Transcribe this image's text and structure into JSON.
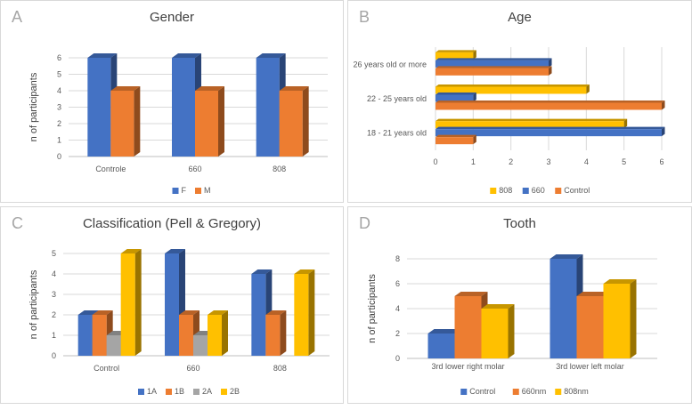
{
  "colors": {
    "blue": "#4472C4",
    "orange": "#ED7D31",
    "gray": "#A5A5A5",
    "yellow": "#FFC000"
  },
  "chart_data": [
    {
      "id": "gender",
      "letter": "A",
      "type": "bar",
      "title": "Gender",
      "xlabel": "",
      "ylabel": "n of participants",
      "ylim": [
        0,
        6
      ],
      "yticks": [
        0,
        1,
        2,
        3,
        4,
        5,
        6
      ],
      "categories": [
        "Controle",
        "660",
        "808"
      ],
      "series": [
        {
          "name": "F",
          "color": "#4472C4",
          "values": [
            6,
            6,
            6
          ]
        },
        {
          "name": "M",
          "color": "#ED7D31",
          "values": [
            4,
            4,
            4
          ]
        }
      ],
      "legend": "bottom",
      "grid": true
    },
    {
      "id": "age",
      "letter": "B",
      "type": "bar",
      "orientation": "horizontal",
      "title": "Age",
      "xlabel": "",
      "ylabel": "",
      "xlim": [
        0,
        6
      ],
      "xticks": [
        0,
        1,
        2,
        3,
        4,
        5,
        6
      ],
      "categories": [
        "18 - 21 years old",
        "22 - 25 years old",
        "26 years old or more"
      ],
      "series": [
        {
          "name": "808",
          "color": "#FFC000",
          "values": [
            5,
            4,
            1
          ]
        },
        {
          "name": "660",
          "color": "#4472C4",
          "values": [
            6,
            1,
            3
          ]
        },
        {
          "name": "Control",
          "color": "#ED7D31",
          "values": [
            1,
            6,
            3
          ]
        }
      ],
      "legend": "bottom",
      "grid": true
    },
    {
      "id": "classification",
      "letter": "C",
      "type": "bar",
      "title": "Classification (Pell & Gregory)",
      "xlabel": "",
      "ylabel": "n of participants",
      "ylim": [
        0,
        5
      ],
      "yticks": [
        0,
        1,
        2,
        3,
        4,
        5
      ],
      "categories": [
        "Control",
        "660",
        "808"
      ],
      "series": [
        {
          "name": "1A",
          "color": "#4472C4",
          "values": [
            2,
            5,
            4
          ]
        },
        {
          "name": "1B",
          "color": "#ED7D31",
          "values": [
            2,
            2,
            2
          ]
        },
        {
          "name": "2A",
          "color": "#A5A5A5",
          "values": [
            1,
            1,
            0
          ]
        },
        {
          "name": "2B",
          "color": "#FFC000",
          "values": [
            5,
            2,
            4
          ]
        }
      ],
      "legend": "bottom",
      "grid": true
    },
    {
      "id": "tooth",
      "letter": "D",
      "type": "bar",
      "title": "Tooth",
      "xlabel": "",
      "ylabel": "n of participants",
      "ylim": [
        0,
        8
      ],
      "yticks": [
        0,
        2,
        4,
        6,
        8
      ],
      "categories": [
        "3rd lower right molar",
        "3rd lower left molar"
      ],
      "series": [
        {
          "name": "Control",
          "color": "#4472C4",
          "values": [
            2,
            8
          ]
        },
        {
          "name": "660nm",
          "color": "#ED7D31",
          "values": [
            5,
            5
          ]
        },
        {
          "name": "808nm",
          "color": "#FFC000",
          "values": [
            4,
            6
          ]
        }
      ],
      "legend": "bottom",
      "grid": true
    }
  ]
}
